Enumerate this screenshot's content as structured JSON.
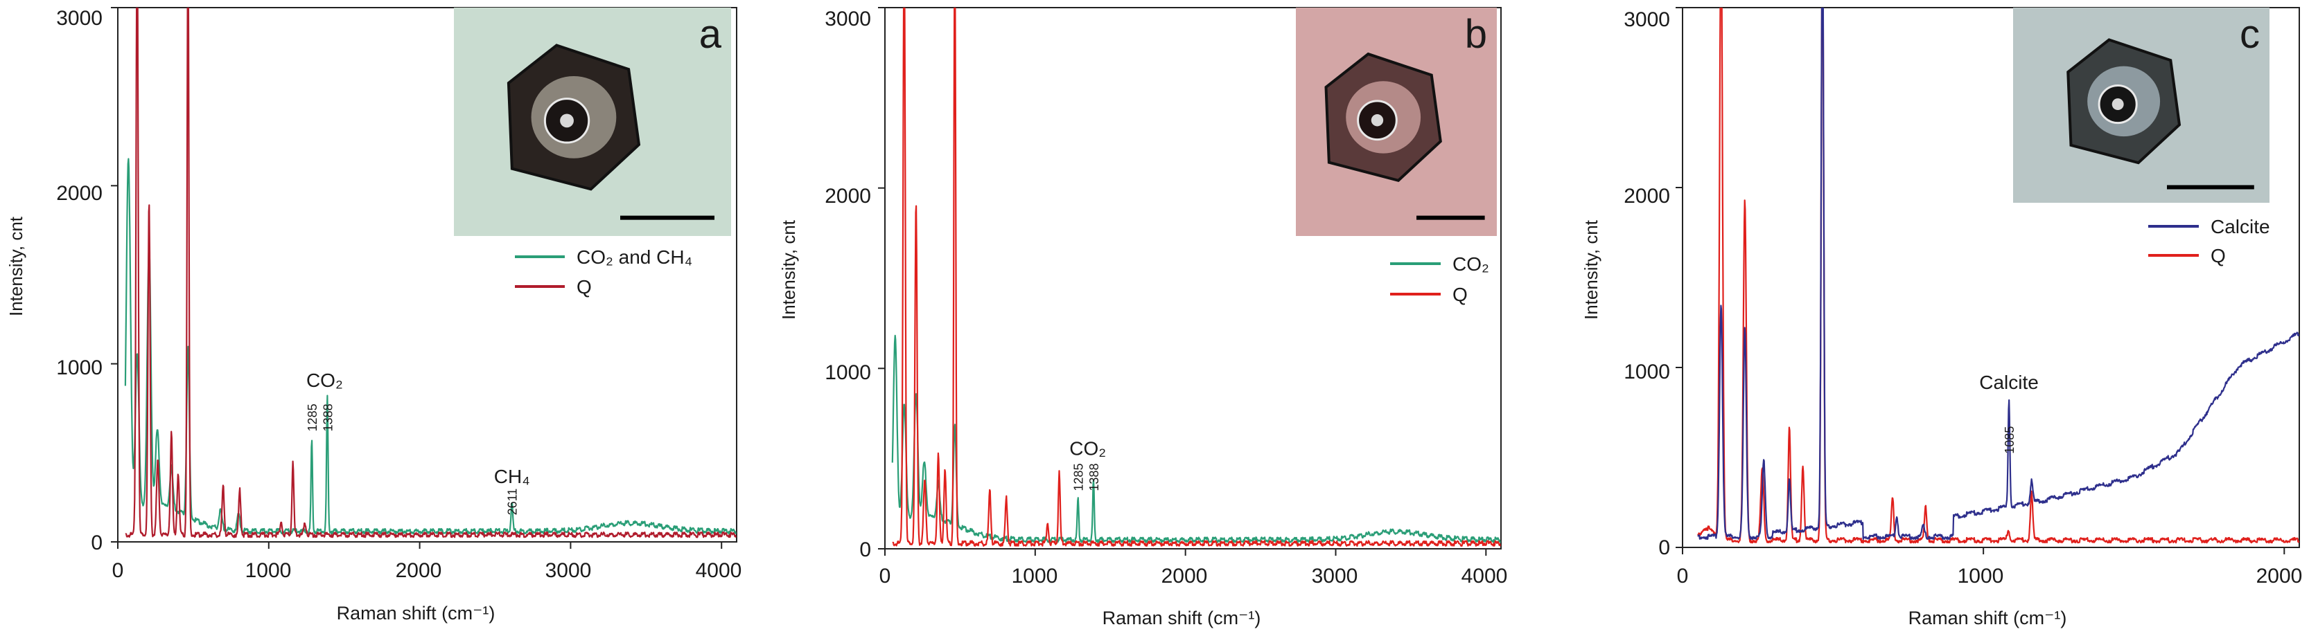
{
  "chart_data": [
    {
      "type": "line",
      "panel_label": "a",
      "xlabel": "Raman shift (cm⁻¹)",
      "ylabel": "Intensity, cnt",
      "xlim": [
        0,
        4100
      ],
      "ylim": [
        0,
        3000
      ],
      "xticks": [
        0,
        1000,
        2000,
        3000,
        4000
      ],
      "yticks": [
        0,
        1000,
        2000,
        3000
      ],
      "xtick_labels": [
        "0",
        "1000",
        "2000",
        "3000",
        "4000"
      ],
      "ytick_labels": [
        "0",
        "1000",
        "2000",
        "3000"
      ],
      "legend": {
        "position": "right",
        "entries": [
          {
            "label": "CO₂ and CH₄",
            "color": "#2a9e77"
          },
          {
            "label": "Q",
            "color": "#b01c2c"
          }
        ]
      },
      "series": [
        {
          "name": "CO2 and CH4",
          "color": "#2a9e77",
          "baseline": 60,
          "x_start": 50,
          "x_end": 4100,
          "peaks": [
            [
              70,
              2000,
              14
            ],
            [
              128,
              880,
              12
            ],
            [
              207,
              1450,
              12
            ],
            [
              262,
              420,
              12
            ],
            [
              355,
              230,
              10
            ],
            [
              465,
              950,
              9
            ],
            [
              680,
              100,
              10
            ],
            [
              800,
              90,
              10
            ],
            [
              1285,
              510,
              5
            ],
            [
              1388,
              760,
              5
            ],
            [
              2611,
              150,
              6
            ]
          ],
          "bumps": [
            [
              3400,
              45,
              200
            ],
            [
              250,
              150,
              200
            ]
          ]
        },
        {
          "name": "Q",
          "color": "#b01c2c",
          "baseline": 40,
          "x_start": 50,
          "x_end": 4100,
          "peaks": [
            [
              128,
              3400,
              7
            ],
            [
              207,
              1870,
              7
            ],
            [
              265,
              420,
              8
            ],
            [
              355,
              570,
              7
            ],
            [
              400,
              350,
              7
            ],
            [
              465,
              3400,
              6
            ],
            [
              698,
              270,
              7
            ],
            [
              808,
              250,
              7
            ],
            [
              1083,
              80,
              6
            ],
            [
              1160,
              400,
              6
            ],
            [
              1240,
              60,
              8
            ]
          ],
          "bumps": []
        }
      ],
      "annotations": [
        {
          "text": "CO₂",
          "x": 1370,
          "y": 870,
          "size": 28
        },
        {
          "text": "1285",
          "x": 1285,
          "y": 620,
          "size": 18,
          "rotate": true
        },
        {
          "text": "1388",
          "x": 1388,
          "y": 620,
          "size": 18,
          "rotate": true
        },
        {
          "text": "CH₄",
          "x": 2611,
          "y": 330,
          "size": 28
        },
        {
          "text": "2611",
          "x": 2611,
          "y": 150,
          "size": 18,
          "rotate": true
        }
      ],
      "inset": {
        "letter": "a",
        "bg": "#c9dcd0",
        "crystal_fill": "#2a2320",
        "crystal_inner": "#8a847a",
        "bubble": "#1a1514"
      }
    },
    {
      "type": "line",
      "panel_label": "b",
      "xlabel": "Raman shift (cm⁻¹)",
      "ylabel": "Intensity, cnt",
      "xlim": [
        0,
        4100
      ],
      "ylim": [
        0,
        3000
      ],
      "xticks": [
        0,
        1000,
        2000,
        3000,
        4000
      ],
      "yticks": [
        0,
        1000,
        2000,
        3000
      ],
      "xtick_labels": [
        "0",
        "1000",
        "2000",
        "3000",
        "4000"
      ],
      "ytick_labels": [
        "0",
        "1000",
        "2000",
        "3000"
      ],
      "legend": {
        "position": "right",
        "entries": [
          {
            "label": "CO₂",
            "color": "#2a9e77"
          },
          {
            "label": "Q",
            "color": "#e0201c"
          }
        ]
      },
      "series": [
        {
          "name": "CO2",
          "color": "#2a9e77",
          "baseline": 50,
          "x_start": 50,
          "x_end": 4100,
          "peaks": [
            [
              68,
              1050,
              12
            ],
            [
              128,
              650,
              12
            ],
            [
              207,
              680,
              12
            ],
            [
              262,
              300,
              12
            ],
            [
              355,
              200,
              10
            ],
            [
              465,
              550,
              9
            ],
            [
              1285,
              230,
              5
            ],
            [
              1388,
              330,
              5
            ]
          ],
          "bumps": [
            [
              3400,
              45,
              200
            ],
            [
              260,
              130,
              220
            ]
          ]
        },
        {
          "name": "Q",
          "color": "#e0201c",
          "baseline": 30,
          "x_start": 50,
          "x_end": 4100,
          "peaks": [
            [
              128,
              3400,
              7
            ],
            [
              207,
              1890,
              7
            ],
            [
              265,
              350,
              8
            ],
            [
              355,
              490,
              7
            ],
            [
              400,
              420,
              7
            ],
            [
              465,
              3400,
              6
            ],
            [
              698,
              290,
              7
            ],
            [
              808,
              250,
              7
            ],
            [
              1083,
              120,
              6
            ],
            [
              1160,
              390,
              6
            ]
          ],
          "bumps": []
        }
      ],
      "annotations": [
        {
          "text": "CO₂",
          "x": 1350,
          "y": 520,
          "size": 28
        },
        {
          "text": "1285",
          "x": 1285,
          "y": 320,
          "size": 18,
          "rotate": true
        },
        {
          "text": "1388",
          "x": 1388,
          "y": 320,
          "size": 18,
          "rotate": true
        }
      ],
      "inset": {
        "letter": "b",
        "bg": "#d3a6a6",
        "crystal_fill": "#5a3a3a",
        "crystal_inner": "#b48a88",
        "bubble": "#1e1212"
      }
    },
    {
      "type": "line",
      "panel_label": "c",
      "xlabel": "Raman shift (cm⁻¹)",
      "ylabel": "Intensity, cnt",
      "xlim": [
        0,
        2050
      ],
      "ylim": [
        0,
        3000
      ],
      "xticks": [
        0,
        1000,
        2000
      ],
      "yticks": [
        0,
        1000,
        2000,
        3000
      ],
      "xtick_labels": [
        "0",
        "1000",
        "2000"
      ],
      "ytick_labels": [
        "0",
        "1000",
        "2000",
        "3000"
      ],
      "legend": {
        "position": "right",
        "entries": [
          {
            "label": "Calcite",
            "color": "#2e2f8c"
          },
          {
            "label": "Q",
            "color": "#e0201c"
          }
        ]
      },
      "series": [
        {
          "name": "Q",
          "color": "#e0201c",
          "baseline": 40,
          "x_start": 50,
          "x_end": 2050,
          "peaks": [
            [
              80,
              70,
              20
            ],
            [
              128,
              3400,
              5
            ],
            [
              207,
              1880,
              5
            ],
            [
              265,
              400,
              5
            ],
            [
              355,
              620,
              4
            ],
            [
              400,
              420,
              4
            ],
            [
              465,
              3400,
              4
            ],
            [
              698,
              230,
              4
            ],
            [
              808,
              180,
              4
            ],
            [
              1083,
              60,
              4
            ],
            [
              1160,
              260,
              4
            ]
          ],
          "bumps": []
        },
        {
          "name": "Calcite",
          "color": "#2e2f8c",
          "baseline": 60,
          "x_start": 50,
          "x_end": 2050,
          "peaks": [
            [
              128,
              1300,
              5
            ],
            [
              207,
              1150,
              5
            ],
            [
              270,
              420,
              5
            ],
            [
              355,
              280,
              4
            ],
            [
              465,
              3400,
              4
            ],
            [
              712,
              110,
              4
            ],
            [
              800,
              60,
              4
            ],
            [
              1085,
              600,
              3
            ],
            [
              1160,
              120,
              4
            ]
          ],
          "bumps": [],
          "ramps": [
            [
              300,
              600,
              20,
              80
            ],
            [
              900,
              1200,
              110,
              200
            ],
            [
              1200,
              1500,
              200,
              330
            ],
            [
              1500,
              1650,
              330,
              470
            ],
            [
              1650,
              1850,
              470,
              950
            ],
            [
              1850,
              2050,
              950,
              1130
            ]
          ]
        }
      ],
      "annotations": [
        {
          "text": "Calcite",
          "x": 1085,
          "y": 880,
          "size": 28
        },
        {
          "text": "1085",
          "x": 1085,
          "y": 520,
          "size": 18,
          "rotate": true
        }
      ],
      "inset": {
        "letter": "c",
        "bg": "#b9c6c6",
        "crystal_fill": "#3a3f40",
        "crystal_inner": "#8d9aa0",
        "bubble": "#151515"
      }
    }
  ]
}
